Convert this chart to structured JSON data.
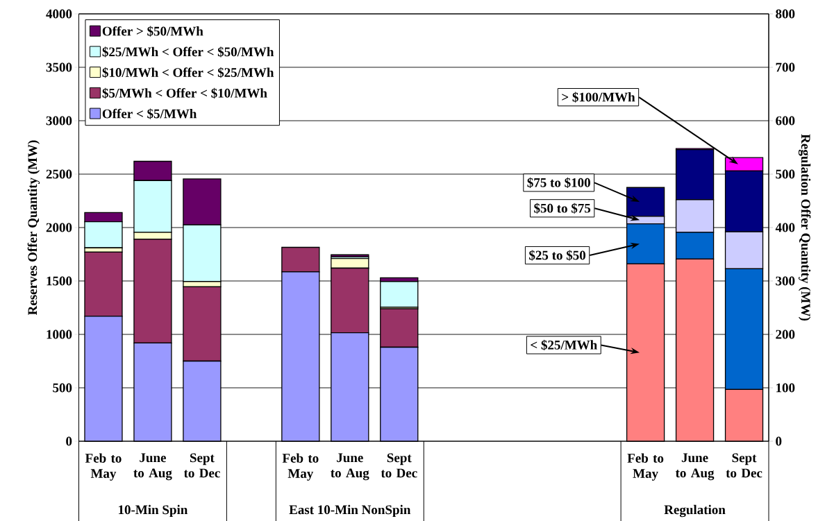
{
  "chart_data": {
    "type": "bar",
    "stacked": true,
    "categories": [
      "Feb to May",
      "June to Aug",
      "Sept to Dec",
      null,
      "Feb to May",
      "June to Aug",
      "Sept to Dec",
      null,
      null,
      null,
      null,
      "Feb to May",
      "June to Aug",
      "Sept to Dec"
    ],
    "ylabel": "Reserves Offer Quantity (MW)",
    "y2label": "Regulation Offer Quantity (MW)",
    "ylim": [
      0,
      4000
    ],
    "yticks": [
      0,
      500,
      1000,
      1500,
      2000,
      2500,
      3000,
      3500,
      4000
    ],
    "y2lim": [
      0,
      800
    ],
    "y2ticks": [
      0,
      100,
      200,
      300,
      400,
      500,
      600,
      700,
      800
    ],
    "grid": "y",
    "legend": "top left",
    "annotations": [
      "10-Min Spin",
      "East 10-Min NonSpin",
      "Regulation"
    ],
    "series": [
      {
        "name": "Offer < $5/MWh",
        "color": "#9999ff",
        "values": [
          1170,
          920,
          750,
          null,
          1585,
          1015,
          880,
          null,
          null,
          null,
          null,
          null,
          null,
          null
        ]
      },
      {
        "name": "$5/MWh < Offer < $10/MWh",
        "color": "#993366",
        "values": [
          600,
          970,
          695,
          null,
          230,
          605,
          360,
          null,
          null,
          null,
          null,
          null,
          null,
          null
        ]
      },
      {
        "name": "$10/MWh < Offer < $25/MWh",
        "color": "#ffffcc",
        "values": [
          40,
          65,
          50,
          null,
          0,
          90,
          15,
          null,
          null,
          null,
          null,
          null,
          null,
          null
        ]
      },
      {
        "name": "$25/MWh < Offer < $50/MWh",
        "color": "#ccffff",
        "values": [
          245,
          485,
          530,
          null,
          0,
          15,
          240,
          null,
          null,
          null,
          null,
          null,
          null,
          null
        ]
      },
      {
        "name": "Offer > $50/MWh",
        "color": "#660066",
        "values": [
          85,
          180,
          430,
          null,
          0,
          20,
          35,
          null,
          null,
          null,
          null,
          null,
          null,
          null
        ]
      },
      {
        "name": "< $25/MWh",
        "color": "#ff8080",
        "axis": "y2",
        "values": [
          null,
          null,
          null,
          null,
          null,
          null,
          null,
          null,
          null,
          null,
          null,
          332,
          341,
          97
        ]
      },
      {
        "name": "$25 to $50",
        "color": "#0066cc",
        "axis": "y2",
        "values": [
          null,
          null,
          null,
          null,
          null,
          null,
          null,
          null,
          null,
          null,
          null,
          75,
          50,
          226
        ]
      },
      {
        "name": "$50 to $75",
        "color": "#ccccff",
        "axis": "y2",
        "values": [
          null,
          null,
          null,
          null,
          null,
          null,
          null,
          null,
          null,
          null,
          null,
          14,
          61,
          69
        ]
      },
      {
        "name": "$75 to $100",
        "color": "#000080",
        "axis": "y2",
        "values": [
          null,
          null,
          null,
          null,
          null,
          null,
          null,
          null,
          null,
          null,
          null,
          54,
          94,
          114
        ]
      },
      {
        "name": "> $100/MWh",
        "color": "#ff00ff",
        "axis": "y2",
        "values": [
          null,
          null,
          null,
          null,
          null,
          null,
          null,
          null,
          null,
          null,
          null,
          0,
          2,
          25
        ]
      }
    ]
  }
}
